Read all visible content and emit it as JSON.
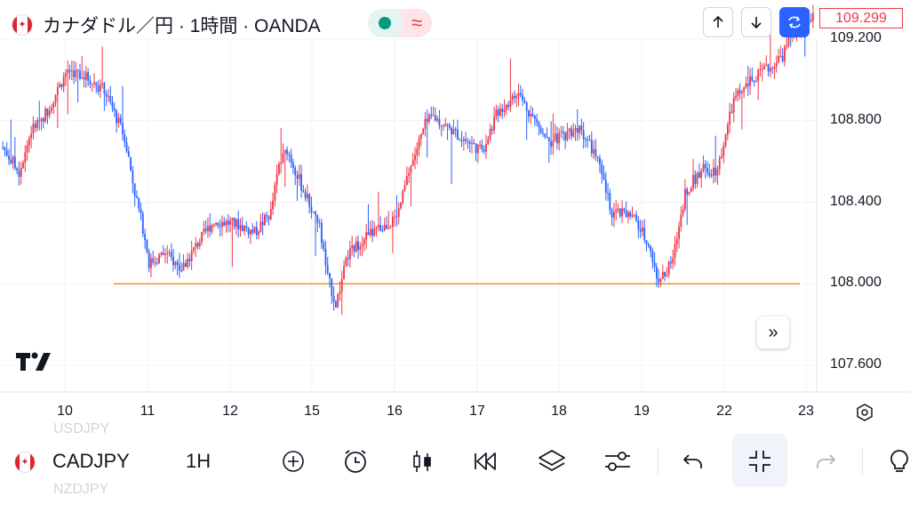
{
  "header": {
    "title": "カナダドル／円 · 1時間 · OANDA",
    "market_status_icon": "open-dot",
    "delayed_icon": "wave-approx",
    "status_wave_glyph": "≈",
    "buttons": [
      "arrow-up-icon",
      "arrow-down-icon",
      "sync-icon"
    ],
    "current_price": "109.299",
    "colors": {
      "accent": "#2962ff",
      "up": "#f23645",
      "down": "#2962ff",
      "open": "#089981"
    }
  },
  "chart_data": {
    "type": "candlestick",
    "symbol": "CADJPY",
    "y_ticks": [
      "109.200",
      "108.800",
      "108.400",
      "108.000",
      "107.600"
    ],
    "ylim": [
      107.43,
      109.43
    ],
    "x_ticks": [
      "10",
      "11",
      "12",
      "15",
      "16",
      "17",
      "18",
      "19",
      "22",
      "23"
    ],
    "horizontal_line": {
      "price": 108.0,
      "color": "#f7931a"
    },
    "close_path": [
      [
        0,
        108.67
      ],
      [
        8,
        108.55
      ],
      [
        14,
        108.75
      ],
      [
        22,
        108.85
      ],
      [
        32,
        109.05
      ],
      [
        40,
        109.02
      ],
      [
        50,
        108.95
      ],
      [
        60,
        108.72
      ],
      [
        65,
        108.45
      ],
      [
        70,
        108.23
      ],
      [
        72,
        108.1
      ],
      [
        80,
        108.15
      ],
      [
        88,
        108.07
      ],
      [
        96,
        108.2
      ],
      [
        104,
        108.31
      ],
      [
        116,
        108.29
      ],
      [
        124,
        108.25
      ],
      [
        132,
        108.35
      ],
      [
        136,
        108.58
      ],
      [
        140,
        108.66
      ],
      [
        148,
        108.46
      ],
      [
        156,
        108.28
      ],
      [
        160,
        108.03
      ],
      [
        164,
        107.9
      ],
      [
        170,
        108.14
      ],
      [
        178,
        108.23
      ],
      [
        186,
        108.27
      ],
      [
        194,
        108.32
      ],
      [
        200,
        108.55
      ],
      [
        208,
        108.78
      ],
      [
        212,
        108.82
      ],
      [
        224,
        108.73
      ],
      [
        236,
        108.65
      ],
      [
        244,
        108.85
      ],
      [
        254,
        108.93
      ],
      [
        262,
        108.8
      ],
      [
        270,
        108.7
      ],
      [
        284,
        108.77
      ],
      [
        292,
        108.63
      ],
      [
        300,
        108.35
      ],
      [
        310,
        108.33
      ],
      [
        318,
        108.2
      ],
      [
        322,
        108.03
      ],
      [
        326,
        108.04
      ],
      [
        330,
        108.12
      ],
      [
        336,
        108.45
      ],
      [
        344,
        108.56
      ],
      [
        352,
        108.56
      ],
      [
        360,
        108.9
      ],
      [
        368,
        108.99
      ],
      [
        376,
        109.05
      ],
      [
        384,
        109.12
      ],
      [
        389,
        109.23
      ],
      [
        399,
        109.3
      ]
    ]
  },
  "tv_logo": "TradingView logo",
  "scroll_button_icon": "chevrons-right-icon",
  "scroll_glyph": "»",
  "chart_settings_icon": "gear-icon",
  "toolbar": {
    "ghost_prev": "USDJPY",
    "ghost_next": "NZDJPY",
    "symbol": "CADJPY",
    "interval": "1H",
    "icons": [
      "compare-add-icon",
      "alarm-icon",
      "candles-icon",
      "replay-icon",
      "layers-icon",
      "settings-sliders-icon",
      "undo-icon",
      "collapse-icon",
      "redo-icon",
      "idea-icon"
    ]
  }
}
